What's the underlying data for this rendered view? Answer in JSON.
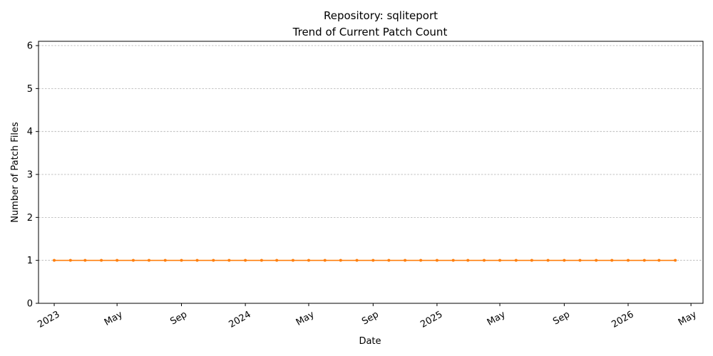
{
  "chart_data": {
    "type": "line",
    "title": "Repository: sqliteport",
    "subtitle": "Trend of Current Patch Count",
    "xlabel": "Date",
    "ylabel": "Number of Patch Files",
    "xlim": [
      "2022-12-02",
      "2026-05-24"
    ],
    "ylim": [
      0,
      6.1
    ],
    "yticks": [
      0,
      1,
      2,
      3,
      4,
      5,
      6
    ],
    "xticks": [
      {
        "date": "2023-01-01",
        "label": "2023"
      },
      {
        "date": "2023-05-01",
        "label": "May"
      },
      {
        "date": "2023-09-01",
        "label": "Sep"
      },
      {
        "date": "2024-01-01",
        "label": "2024"
      },
      {
        "date": "2024-05-01",
        "label": "May"
      },
      {
        "date": "2024-09-01",
        "label": "Sep"
      },
      {
        "date": "2025-01-01",
        "label": "2025"
      },
      {
        "date": "2025-05-01",
        "label": "May"
      },
      {
        "date": "2025-09-01",
        "label": "Sep"
      },
      {
        "date": "2026-01-01",
        "label": "2026"
      },
      {
        "date": "2026-05-01",
        "label": "May"
      }
    ],
    "grid": "y-dashed",
    "series_color": "#ff7f0e",
    "series": [
      {
        "x": [
          "2023-01-01",
          "2023-02-01",
          "2023-03-01",
          "2023-04-01",
          "2023-05-01",
          "2023-06-01",
          "2023-07-01",
          "2023-08-01",
          "2023-09-01",
          "2023-10-01",
          "2023-11-01",
          "2023-12-01",
          "2024-01-01",
          "2024-02-01",
          "2024-03-01",
          "2024-04-01",
          "2024-05-01",
          "2024-06-01",
          "2024-07-01",
          "2024-08-01",
          "2024-09-01",
          "2024-10-01",
          "2024-11-01",
          "2024-12-01",
          "2025-01-01",
          "2025-02-01",
          "2025-03-01",
          "2025-04-01",
          "2025-05-01",
          "2025-06-01",
          "2025-07-01",
          "2025-08-01",
          "2025-09-01",
          "2025-10-01",
          "2025-11-01",
          "2025-12-01",
          "2026-01-01",
          "2026-02-01",
          "2026-03-01",
          "2026-04-01"
        ],
        "values": [
          1,
          1,
          1,
          1,
          1,
          1,
          1,
          1,
          1,
          1,
          1,
          1,
          1,
          1,
          1,
          1,
          1,
          1,
          1,
          1,
          1,
          1,
          1,
          1,
          1,
          1,
          1,
          1,
          1,
          1,
          1,
          1,
          1,
          1,
          1,
          1,
          1,
          1,
          1,
          1
        ]
      }
    ]
  }
}
